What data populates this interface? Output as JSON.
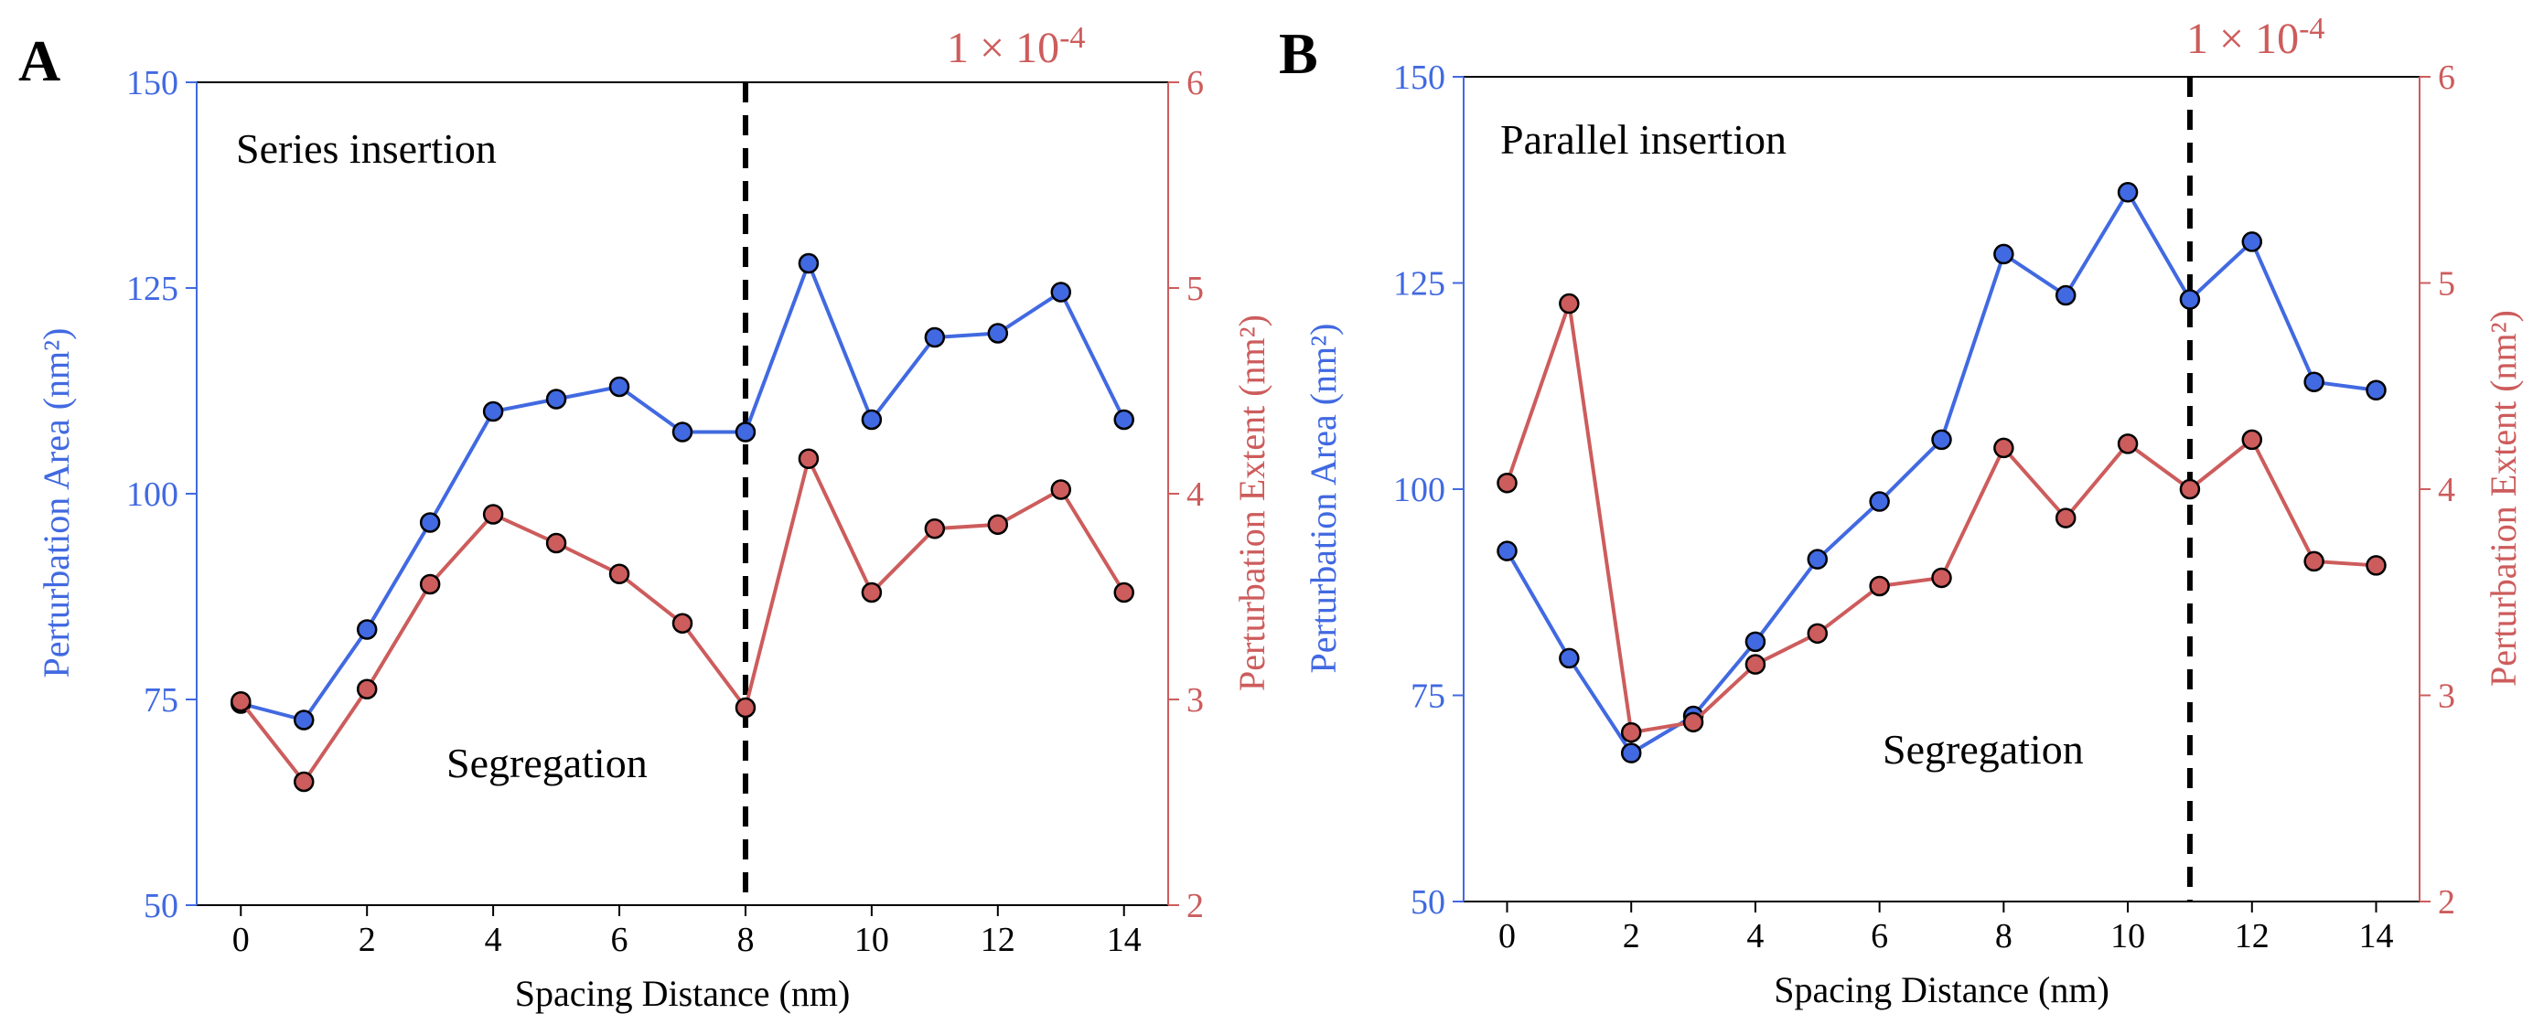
{
  "colors": {
    "left_axis": "#4169e1",
    "right_axis": "#cd5c5c",
    "series_left": "#4169e1",
    "series_right": "#cd5c5c"
  },
  "chart_data": [
    {
      "type": "line",
      "panel": "A",
      "annotations": [
        "Series insertion",
        "Segregation"
      ],
      "right_axis_scale_text": "1 × 10",
      "right_axis_scale_exponent": "-4",
      "xlabel": "Spacing Distance (nm)",
      "ylabel_left": "Perturbation Area (nm²)",
      "ylabel_right": "Perturbation Extent (nm²)",
      "xlim": [
        -0.7,
        14.7
      ],
      "ylim_left": [
        50,
        150
      ],
      "ylim_right": [
        2,
        6
      ],
      "xticks": [
        0,
        2,
        4,
        6,
        8,
        10,
        12,
        14
      ],
      "yticks_left": [
        50,
        75,
        100,
        125,
        150
      ],
      "yticks_right": [
        2,
        3,
        4,
        5,
        6
      ],
      "vline_x": 8,
      "x": [
        0,
        1,
        2,
        3,
        4,
        5,
        6,
        7,
        8,
        9,
        10,
        11,
        12,
        13,
        14
      ],
      "series": [
        {
          "name": "Perturbation Area",
          "axis": "left",
          "values": [
            74.5,
            72.5,
            83.5,
            96.5,
            110,
            111.5,
            113,
            107.5,
            107.5,
            128,
            109,
            119,
            119.5,
            124.5,
            109
          ]
        },
        {
          "name": "Perturbation Extent",
          "axis": "right",
          "values": [
            2.99,
            2.6,
            3.05,
            3.56,
            3.9,
            3.76,
            3.61,
            3.37,
            2.96,
            4.17,
            3.52,
            3.83,
            3.85,
            4.02,
            3.52
          ]
        }
      ]
    },
    {
      "type": "line",
      "panel": "B",
      "annotations": [
        "Parallel insertion",
        "Segregation"
      ],
      "right_axis_scale_text": "1 × 10",
      "right_axis_scale_exponent": "-4",
      "xlabel": "Spacing Distance (nm)",
      "ylabel_left": "Perturbation Area (nm²)",
      "ylabel_right": "Perturbation Extent (nm²)",
      "xlim": [
        -0.7,
        14.7
      ],
      "ylim_left": [
        50,
        150
      ],
      "ylim_right": [
        2,
        6
      ],
      "xticks": [
        0,
        2,
        4,
        6,
        8,
        10,
        12,
        14
      ],
      "yticks_left": [
        50,
        75,
        100,
        125,
        150
      ],
      "yticks_right": [
        2,
        3,
        4,
        5,
        6
      ],
      "vline_x": 11,
      "x": [
        0,
        1,
        2,
        3,
        4,
        5,
        6,
        7,
        8,
        9,
        10,
        11,
        12,
        13,
        14
      ],
      "series": [
        {
          "name": "Perturbation Area",
          "axis": "left",
          "values": [
            92.5,
            79.5,
            68,
            72.5,
            81.5,
            91.5,
            98.5,
            106,
            128.5,
            123.5,
            136,
            123,
            130,
            113,
            112
          ]
        },
        {
          "name": "Perturbation Extent",
          "axis": "right",
          "values": [
            4.03,
            4.9,
            2.82,
            2.87,
            3.15,
            3.3,
            3.53,
            3.57,
            4.2,
            3.86,
            4.22,
            4.0,
            4.24,
            3.65,
            3.63
          ]
        }
      ]
    }
  ]
}
